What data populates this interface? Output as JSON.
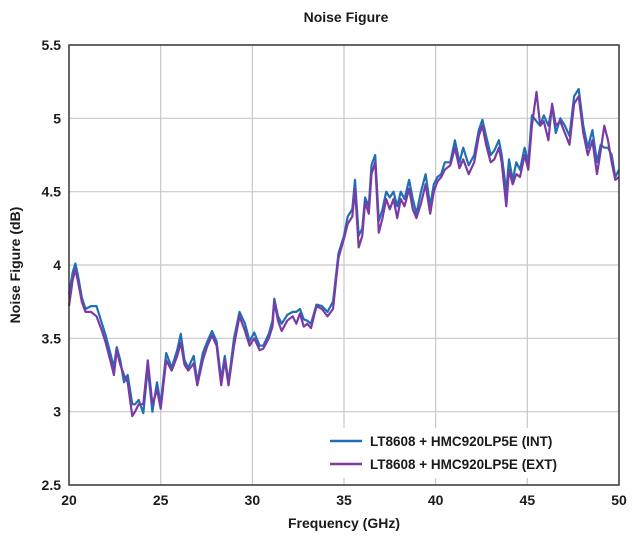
{
  "chart_data": {
    "type": "line",
    "title": "Noise Figure",
    "xlabel": "Frequency (GHz)",
    "ylabel": "Noise Figure (dB)",
    "xlim": [
      20,
      50
    ],
    "ylim": [
      2.5,
      5.5
    ],
    "x_ticks": [
      20,
      25,
      30,
      35,
      40,
      45,
      50
    ],
    "y_ticks": [
      2.5,
      3,
      3.5,
      4,
      4.5,
      5,
      5.5
    ],
    "x_tick_labels": [
      "20",
      "25",
      "30",
      "35",
      "40",
      "45",
      "50"
    ],
    "y_tick_labels": [
      "2.5",
      "3",
      "3.5",
      "4",
      "4.5",
      "5",
      "5.5"
    ],
    "grid": true,
    "legend_position": "bottom-right",
    "series": [
      {
        "name": "LT8608 + HMC920LP5E (INT)",
        "color": "#1f6fb5",
        "points": [
          [
            20,
            3.8
          ],
          [
            20.2,
            3.95
          ],
          [
            20.35,
            4.01
          ],
          [
            20.5,
            3.92
          ],
          [
            20.7,
            3.78
          ],
          [
            20.9,
            3.7
          ],
          [
            21.2,
            3.72
          ],
          [
            21.5,
            3.72
          ],
          [
            21.8,
            3.6
          ],
          [
            22,
            3.52
          ],
          [
            22.25,
            3.4
          ],
          [
            22.45,
            3.3
          ],
          [
            22.6,
            3.44
          ],
          [
            22.8,
            3.35
          ],
          [
            23,
            3.2
          ],
          [
            23.2,
            3.25
          ],
          [
            23.45,
            3.05
          ],
          [
            23.6,
            3.05
          ],
          [
            23.8,
            3.08
          ],
          [
            24.05,
            2.99
          ],
          [
            24.3,
            3.3
          ],
          [
            24.55,
            3.0
          ],
          [
            24.8,
            3.2
          ],
          [
            25.0,
            3.05
          ],
          [
            25.3,
            3.4
          ],
          [
            25.6,
            3.3
          ],
          [
            25.9,
            3.42
          ],
          [
            26.1,
            3.53
          ],
          [
            26.3,
            3.35
          ],
          [
            26.5,
            3.3
          ],
          [
            26.8,
            3.38
          ],
          [
            27.0,
            3.2
          ],
          [
            27.3,
            3.4
          ],
          [
            27.55,
            3.48
          ],
          [
            27.8,
            3.55
          ],
          [
            28.05,
            3.48
          ],
          [
            28.3,
            3.22
          ],
          [
            28.5,
            3.38
          ],
          [
            28.7,
            3.2
          ],
          [
            29.0,
            3.5
          ],
          [
            29.3,
            3.68
          ],
          [
            29.6,
            3.6
          ],
          [
            29.85,
            3.48
          ],
          [
            30.1,
            3.54
          ],
          [
            30.4,
            3.45
          ],
          [
            30.6,
            3.45
          ],
          [
            30.9,
            3.53
          ],
          [
            31.1,
            3.62
          ],
          [
            31.2,
            3.77
          ],
          [
            31.4,
            3.65
          ],
          [
            31.6,
            3.6
          ],
          [
            31.9,
            3.66
          ],
          [
            32.2,
            3.68
          ],
          [
            32.4,
            3.68
          ],
          [
            32.6,
            3.7
          ],
          [
            32.8,
            3.63
          ],
          [
            33.0,
            3.62
          ],
          [
            33.2,
            3.6
          ],
          [
            33.5,
            3.73
          ],
          [
            33.8,
            3.72
          ],
          [
            34.1,
            3.68
          ],
          [
            34.4,
            3.75
          ],
          [
            34.7,
            4.08
          ],
          [
            35.0,
            4.2
          ],
          [
            35.2,
            4.33
          ],
          [
            35.45,
            4.38
          ],
          [
            35.6,
            4.58
          ],
          [
            35.8,
            4.2
          ],
          [
            36.0,
            4.25
          ],
          [
            36.15,
            4.46
          ],
          [
            36.35,
            4.4
          ],
          [
            36.5,
            4.68
          ],
          [
            36.7,
            4.75
          ],
          [
            36.9,
            4.3
          ],
          [
            37.1,
            4.38
          ],
          [
            37.3,
            4.5
          ],
          [
            37.5,
            4.46
          ],
          [
            37.7,
            4.5
          ],
          [
            37.9,
            4.4
          ],
          [
            38.1,
            4.5
          ],
          [
            38.3,
            4.45
          ],
          [
            38.55,
            4.58
          ],
          [
            38.75,
            4.45
          ],
          [
            38.95,
            4.35
          ],
          [
            39.2,
            4.5
          ],
          [
            39.45,
            4.62
          ],
          [
            39.7,
            4.4
          ],
          [
            39.9,
            4.55
          ],
          [
            40.1,
            4.6
          ],
          [
            40.3,
            4.62
          ],
          [
            40.5,
            4.7
          ],
          [
            40.8,
            4.7
          ],
          [
            41.05,
            4.85
          ],
          [
            41.3,
            4.7
          ],
          [
            41.5,
            4.8
          ],
          [
            41.8,
            4.68
          ],
          [
            42.1,
            4.75
          ],
          [
            42.35,
            4.92
          ],
          [
            42.55,
            4.99
          ],
          [
            42.75,
            4.88
          ],
          [
            43.0,
            4.75
          ],
          [
            43.2,
            4.78
          ],
          [
            43.45,
            4.85
          ],
          [
            43.6,
            4.75
          ],
          [
            43.85,
            4.5
          ],
          [
            44.0,
            4.72
          ],
          [
            44.2,
            4.58
          ],
          [
            44.4,
            4.7
          ],
          [
            44.6,
            4.65
          ],
          [
            44.85,
            4.8
          ],
          [
            45.05,
            4.7
          ],
          [
            45.25,
            5.02
          ],
          [
            45.5,
            4.98
          ],
          [
            45.7,
            4.95
          ],
          [
            45.9,
            5.02
          ],
          [
            46.15,
            4.95
          ],
          [
            46.35,
            5.08
          ],
          [
            46.55,
            4.9
          ],
          [
            46.8,
            5.0
          ],
          [
            47.05,
            4.95
          ],
          [
            47.3,
            4.88
          ],
          [
            47.55,
            5.15
          ],
          [
            47.8,
            5.2
          ],
          [
            48.05,
            4.95
          ],
          [
            48.3,
            4.8
          ],
          [
            48.55,
            4.92
          ],
          [
            48.8,
            4.7
          ],
          [
            49.0,
            4.82
          ],
          [
            49.2,
            4.8
          ],
          [
            49.4,
            4.8
          ],
          [
            49.6,
            4.75
          ],
          [
            49.8,
            4.6
          ],
          [
            50.0,
            4.65
          ]
        ]
      },
      {
        "name": "LT8608 + HMC920LP5E (EXT)",
        "color": "#7b3aa5",
        "points": [
          [
            20,
            3.72
          ],
          [
            20.2,
            3.9
          ],
          [
            20.35,
            3.97
          ],
          [
            20.5,
            3.88
          ],
          [
            20.7,
            3.75
          ],
          [
            20.9,
            3.68
          ],
          [
            21.2,
            3.68
          ],
          [
            21.5,
            3.65
          ],
          [
            21.8,
            3.55
          ],
          [
            22,
            3.47
          ],
          [
            22.25,
            3.35
          ],
          [
            22.45,
            3.25
          ],
          [
            22.6,
            3.42
          ],
          [
            22.8,
            3.32
          ],
          [
            23.0,
            3.25
          ],
          [
            23.2,
            3.2
          ],
          [
            23.45,
            2.97
          ],
          [
            23.6,
            3.0
          ],
          [
            23.8,
            3.05
          ],
          [
            24.05,
            3.05
          ],
          [
            24.3,
            3.35
          ],
          [
            24.55,
            3.05
          ],
          [
            24.8,
            3.15
          ],
          [
            25.0,
            3.02
          ],
          [
            25.3,
            3.35
          ],
          [
            25.6,
            3.28
          ],
          [
            25.9,
            3.38
          ],
          [
            26.1,
            3.47
          ],
          [
            26.3,
            3.32
          ],
          [
            26.5,
            3.28
          ],
          [
            26.8,
            3.33
          ],
          [
            27.0,
            3.18
          ],
          [
            27.3,
            3.35
          ],
          [
            27.55,
            3.45
          ],
          [
            27.8,
            3.52
          ],
          [
            28.05,
            3.45
          ],
          [
            28.3,
            3.18
          ],
          [
            28.5,
            3.35
          ],
          [
            28.7,
            3.18
          ],
          [
            29.0,
            3.45
          ],
          [
            29.3,
            3.65
          ],
          [
            29.6,
            3.55
          ],
          [
            29.85,
            3.45
          ],
          [
            30.1,
            3.5
          ],
          [
            30.4,
            3.42
          ],
          [
            30.6,
            3.43
          ],
          [
            30.9,
            3.5
          ],
          [
            31.1,
            3.58
          ],
          [
            31.2,
            3.75
          ],
          [
            31.4,
            3.62
          ],
          [
            31.6,
            3.55
          ],
          [
            31.9,
            3.62
          ],
          [
            32.2,
            3.65
          ],
          [
            32.4,
            3.6
          ],
          [
            32.6,
            3.67
          ],
          [
            32.8,
            3.58
          ],
          [
            33.0,
            3.6
          ],
          [
            33.2,
            3.57
          ],
          [
            33.5,
            3.72
          ],
          [
            33.8,
            3.7
          ],
          [
            34.1,
            3.65
          ],
          [
            34.4,
            3.7
          ],
          [
            34.7,
            4.05
          ],
          [
            35.0,
            4.18
          ],
          [
            35.2,
            4.28
          ],
          [
            35.45,
            4.33
          ],
          [
            35.6,
            4.52
          ],
          [
            35.8,
            4.12
          ],
          [
            36.0,
            4.2
          ],
          [
            36.15,
            4.43
          ],
          [
            36.35,
            4.35
          ],
          [
            36.5,
            4.62
          ],
          [
            36.7,
            4.7
          ],
          [
            36.9,
            4.22
          ],
          [
            37.1,
            4.32
          ],
          [
            37.3,
            4.45
          ],
          [
            37.5,
            4.38
          ],
          [
            37.7,
            4.45
          ],
          [
            37.9,
            4.32
          ],
          [
            38.1,
            4.45
          ],
          [
            38.3,
            4.4
          ],
          [
            38.55,
            4.52
          ],
          [
            38.75,
            4.38
          ],
          [
            38.95,
            4.32
          ],
          [
            39.2,
            4.42
          ],
          [
            39.45,
            4.55
          ],
          [
            39.7,
            4.35
          ],
          [
            39.9,
            4.5
          ],
          [
            40.1,
            4.57
          ],
          [
            40.3,
            4.6
          ],
          [
            40.5,
            4.65
          ],
          [
            40.8,
            4.68
          ],
          [
            41.05,
            4.8
          ],
          [
            41.3,
            4.66
          ],
          [
            41.5,
            4.72
          ],
          [
            41.8,
            4.62
          ],
          [
            42.1,
            4.7
          ],
          [
            42.35,
            4.88
          ],
          [
            42.55,
            4.95
          ],
          [
            42.75,
            4.82
          ],
          [
            43.0,
            4.7
          ],
          [
            43.2,
            4.72
          ],
          [
            43.45,
            4.8
          ],
          [
            43.6,
            4.7
          ],
          [
            43.85,
            4.4
          ],
          [
            44.0,
            4.65
          ],
          [
            44.2,
            4.55
          ],
          [
            44.4,
            4.62
          ],
          [
            44.6,
            4.6
          ],
          [
            44.85,
            4.75
          ],
          [
            45.05,
            4.65
          ],
          [
            45.25,
            4.95
          ],
          [
            45.5,
            5.18
          ],
          [
            45.7,
            4.95
          ],
          [
            45.9,
            4.98
          ],
          [
            46.15,
            4.85
          ],
          [
            46.35,
            5.1
          ],
          [
            46.55,
            4.95
          ],
          [
            46.8,
            4.98
          ],
          [
            47.05,
            4.9
          ],
          [
            47.3,
            4.82
          ],
          [
            47.55,
            5.1
          ],
          [
            47.8,
            5.15
          ],
          [
            48.05,
            4.9
          ],
          [
            48.3,
            4.75
          ],
          [
            48.55,
            4.85
          ],
          [
            48.8,
            4.62
          ],
          [
            49.0,
            4.78
          ],
          [
            49.2,
            4.95
          ],
          [
            49.4,
            4.85
          ],
          [
            49.6,
            4.7
          ],
          [
            49.8,
            4.58
          ],
          [
            50.0,
            4.6
          ]
        ]
      }
    ]
  }
}
